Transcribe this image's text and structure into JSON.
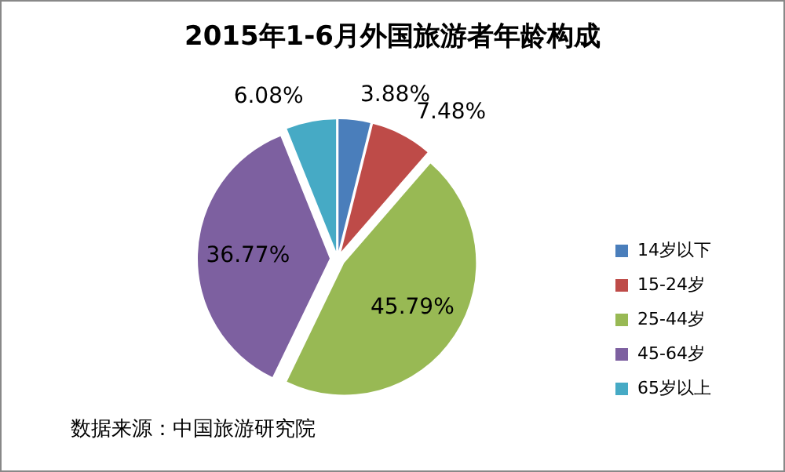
{
  "chart_data": {
    "type": "pie",
    "title": "2015年1-6月外国旅游者年龄构成",
    "categories": [
      "14岁以下",
      "15-24岁",
      "25-44岁",
      "45-64岁",
      "65岁以上"
    ],
    "values": [
      3.88,
      7.48,
      45.79,
      36.77,
      6.08
    ],
    "value_labels": [
      "3.88%",
      "7.48%",
      "45.79%",
      "36.77%",
      "6.08%"
    ],
    "colors": [
      "#4a7ebb",
      "#be4b48",
      "#98b954",
      "#7d60a0",
      "#46aac5"
    ],
    "legend": "right",
    "annotations": [
      "数据来源：中国旅游研究院"
    ]
  }
}
